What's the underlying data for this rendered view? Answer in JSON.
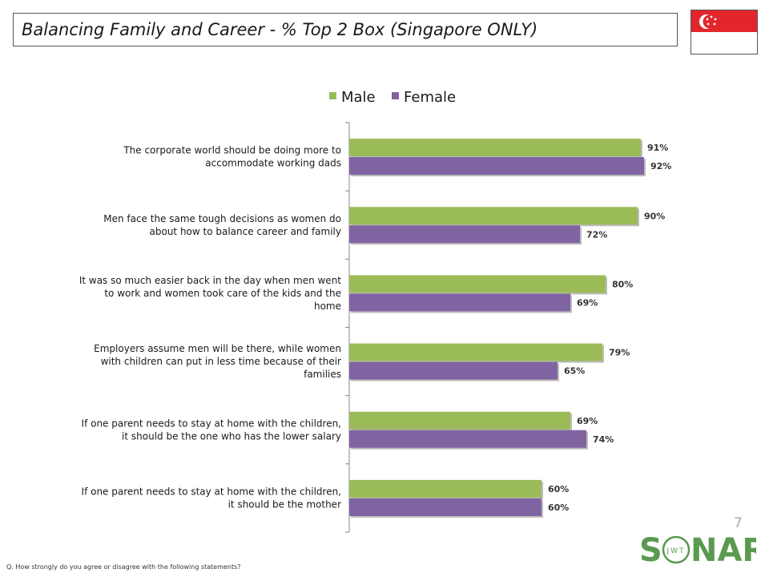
{
  "title": "Balancing Family and Career - % Top 2 Box (Singapore ONLY)",
  "footnote": "Q. How strongly do you agree or disagree with the following statements?",
  "page_number": "7",
  "logo": {
    "brand": "SONAR",
    "inner": "JWT"
  },
  "flag": "singapore-flag",
  "colors": {
    "male": "#9bbb59",
    "female": "#8064a2"
  },
  "chart_data": {
    "type": "bar",
    "orientation": "horizontal",
    "legend_position": "top",
    "xlim": [
      0,
      100
    ],
    "grid": false,
    "categories": [
      "The corporate world should be doing more to accommodate working dads",
      "Men face the same tough decisions as women do about how to balance career and family",
      "It was so much easier back in the day when men went to work and women took care of the kids and the home",
      "Employers assume men will be there, while women with children can put in less time because of their families",
      "If one parent needs to stay at home with the children, it should be the one who has the lower salary",
      "If one parent needs to stay at home with the children, it should be the mother"
    ],
    "category_lines": [
      [
        "The corporate world should be doing more to",
        "accommodate working dads"
      ],
      [
        "Men face the same tough decisions as women do",
        "about how to balance career and family"
      ],
      [
        "It was so much easier back in the day when men went",
        "to work and women took care of the kids and the",
        "home"
      ],
      [
        "Employers assume men will be there, while women",
        "with children can put in less time because of their",
        "families"
      ],
      [
        "If one parent needs to stay at home with the children,",
        "it should be the one who has the lower salary"
      ],
      [
        "If one parent needs to stay at home with the children,",
        "it should be the mother"
      ]
    ],
    "series": [
      {
        "name": "Male",
        "values": [
          91,
          90,
          80,
          79,
          69,
          60
        ],
        "labels": [
          "91%",
          "90%",
          "80%",
          "79%",
          "69%",
          "60%"
        ]
      },
      {
        "name": "Female",
        "values": [
          92,
          72,
          69,
          65,
          74,
          60
        ],
        "labels": [
          "92%",
          "72%",
          "69%",
          "65%",
          "74%",
          "60%"
        ]
      }
    ]
  }
}
